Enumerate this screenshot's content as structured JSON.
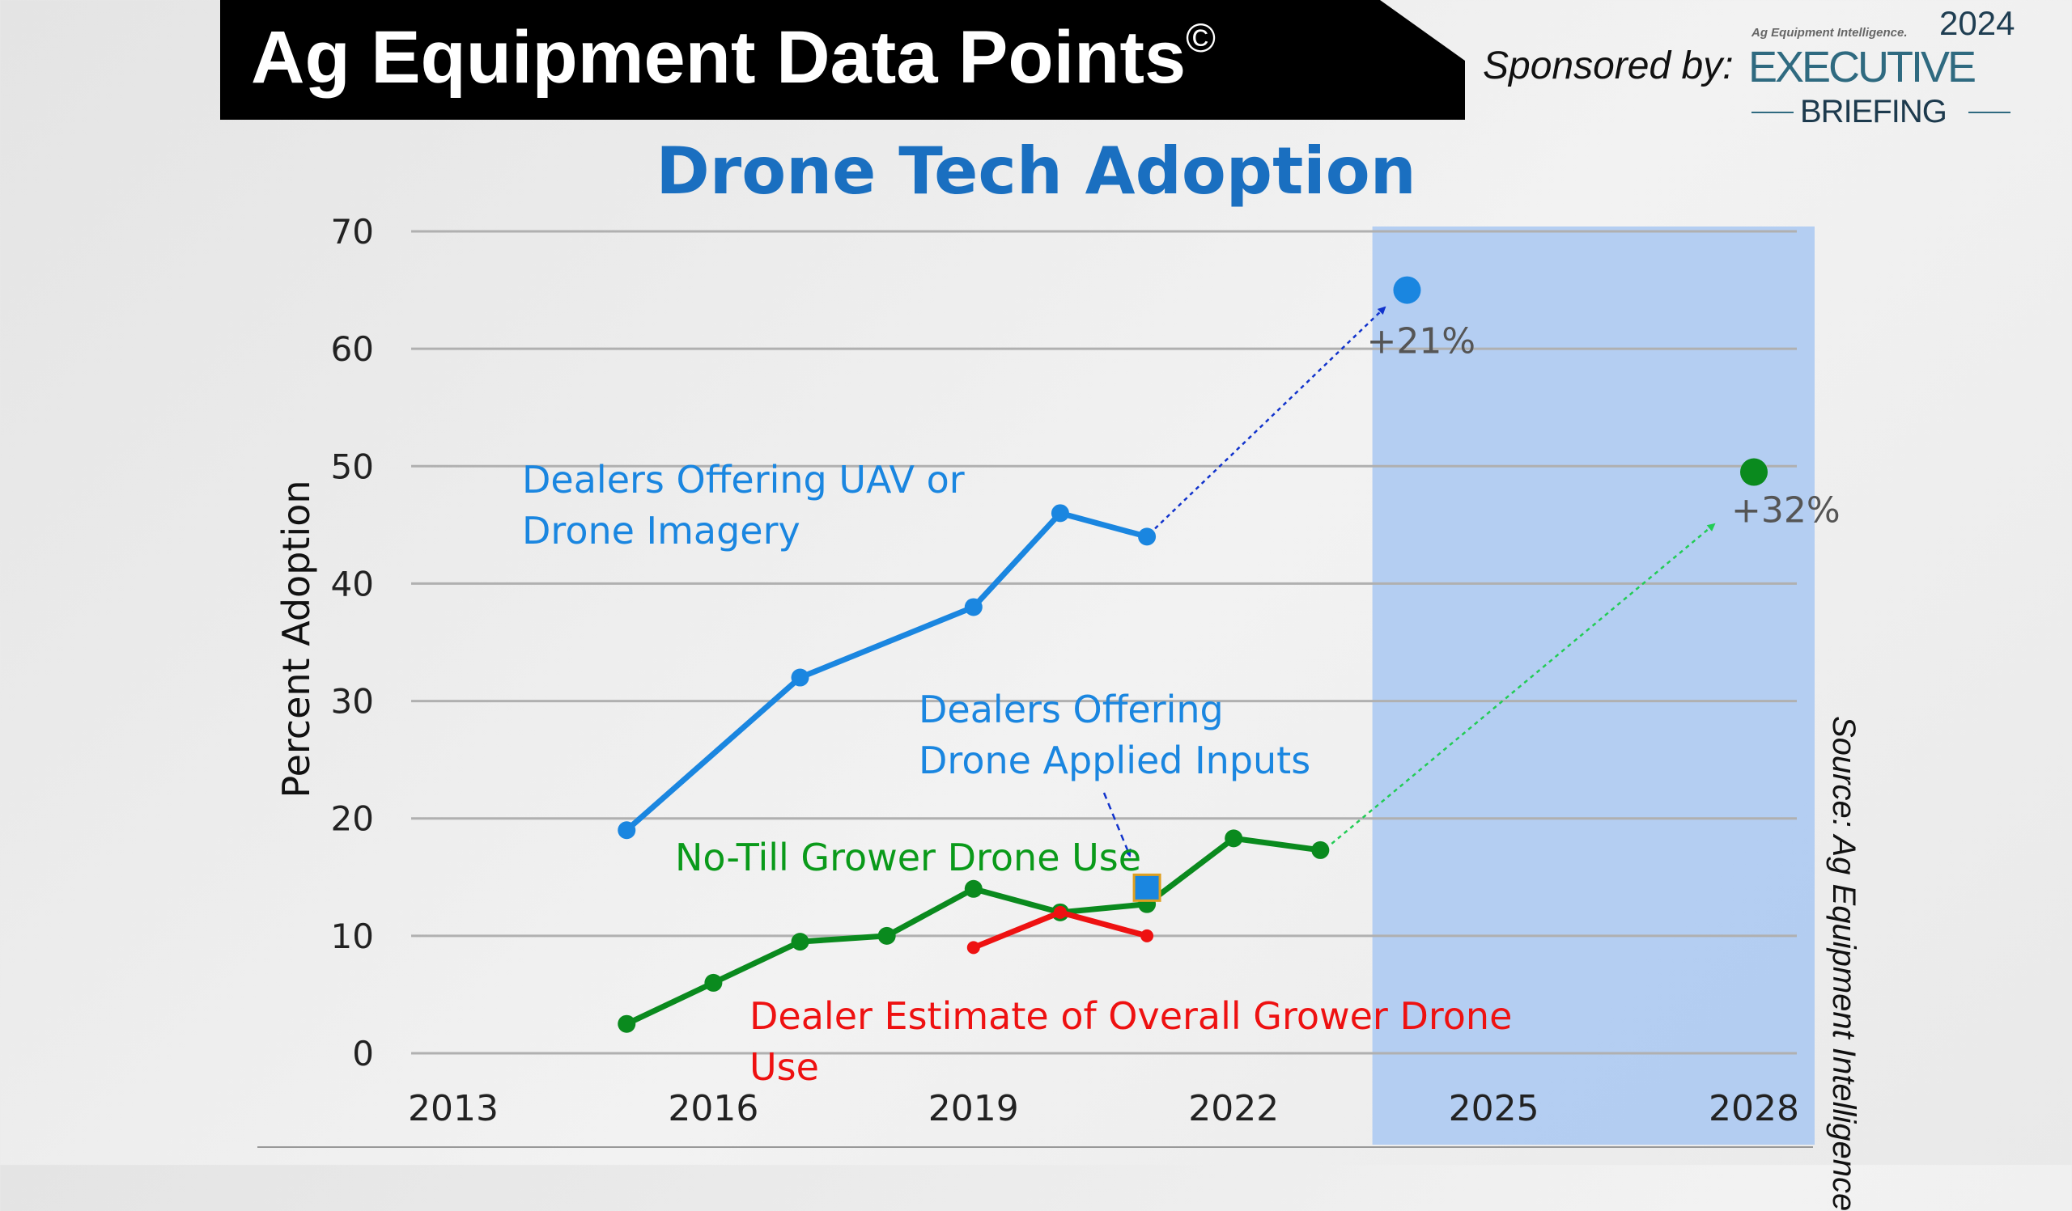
{
  "header": {
    "title": "Ag Equipment Data Points",
    "title_mark": "©",
    "sponsored_label": "Sponsored by:",
    "sponsor_logo": {
      "small_text": "Ag Equipment Intelligence.",
      "year": "2024",
      "line1": "EXECUTIVE",
      "line2": "BRIEFING"
    }
  },
  "source": "Source: Ag Equipment Intelligence",
  "colors": {
    "blue": "#1a86e0",
    "green": "#0a8a1e",
    "red": "#ee1111",
    "title_blue": "#1a6fc0",
    "shade": "#a9c8f2"
  },
  "chart_data": {
    "type": "line",
    "title": "Drone Tech Adoption",
    "xlabel": "",
    "ylabel": "Percent Adoption",
    "xlim": [
      2013,
      2028
    ],
    "ylim": [
      0,
      70
    ],
    "x_ticks": [
      "2013",
      "2016",
      "2019",
      "2022",
      "2025",
      "2028"
    ],
    "y_ticks": [
      "0",
      "10",
      "20",
      "30",
      "40",
      "50",
      "60",
      "70"
    ],
    "grid": true,
    "shaded_projection_range": [
      2023.6,
      2028.7
    ],
    "series": [
      {
        "name": "Dealers Offering UAV or Drone Imagery",
        "label_lines": [
          "Dealers Offering UAV or",
          "Drone Imagery"
        ],
        "color": "#1a86e0",
        "x": [
          2015,
          2017,
          2019,
          2020,
          2021
        ],
        "y": [
          19,
          32,
          38,
          46,
          44
        ],
        "projection": {
          "x": 2024,
          "y": 65,
          "label": "+21%"
        }
      },
      {
        "name": "No-Till Grower Drone Use",
        "label_lines": [
          "No-Till Grower Drone Use"
        ],
        "color": "#0a8a1e",
        "x": [
          2015,
          2016,
          2017,
          2018,
          2019,
          2020,
          2021,
          2022,
          2023
        ],
        "y": [
          2.5,
          6,
          9.5,
          10,
          14,
          12,
          12.7,
          18.3,
          17.3
        ],
        "projection": {
          "x": 2028,
          "y": 49.5,
          "label": "+32%"
        }
      },
      {
        "name": "Dealer Estimate of Overall Grower Drone Use",
        "label_lines": [
          "Dealer Estimate of Overall Grower Drone",
          "Use"
        ],
        "color": "#ee1111",
        "x": [
          2019,
          2020,
          2021
        ],
        "y": [
          9,
          12,
          10
        ]
      },
      {
        "name": "Dealers Offering Drone Applied Inputs",
        "label_lines": [
          "Dealers Offering",
          "Drone Applied Inputs"
        ],
        "color": "#1a86e0",
        "x": [
          2021
        ],
        "y": [
          14.1
        ],
        "marker": "square"
      }
    ]
  }
}
